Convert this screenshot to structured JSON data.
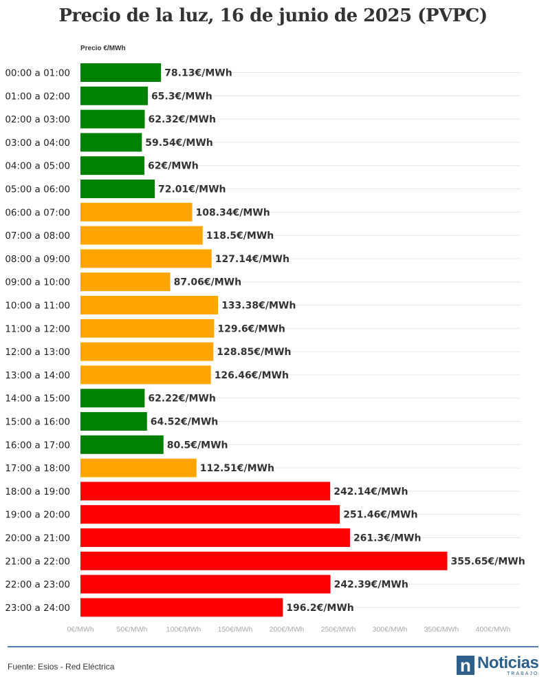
{
  "chart_data": {
    "type": "bar",
    "orientation": "horizontal",
    "title": "Precio de la luz, 16 de junio de 2025 (PVPC)",
    "value_axis_label": "Precio €/MWh",
    "value_suffix": "€/MWh",
    "xlim": [
      0,
      400
    ],
    "x_ticks": [
      "0€/MWh",
      "50€/MWh",
      "100€/MWh",
      "150€/MWh",
      "200€/MWh",
      "250€/MWh",
      "300€/MWh",
      "350€/MWh",
      "400€/MWh"
    ],
    "grid": true,
    "colors": {
      "low": "#008000",
      "mid": "#ffa500",
      "high": "#ff0000"
    },
    "categories": [
      "00:00 a 01:00",
      "01:00 a 02:00",
      "02:00 a 03:00",
      "03:00 a 04:00",
      "04:00 a 05:00",
      "05:00 a 06:00",
      "06:00 a 07:00",
      "07:00 a 08:00",
      "08:00 a 09:00",
      "09:00 a 10:00",
      "10:00 a 11:00",
      "11:00 a 12:00",
      "12:00 a 13:00",
      "13:00 a 14:00",
      "14:00 a 15:00",
      "15:00 a 16:00",
      "16:00 a 17:00",
      "17:00 a 18:00",
      "18:00 a 19:00",
      "19:00 a 20:00",
      "20:00 a 21:00",
      "21:00 a 22:00",
      "22:00 a 23:00",
      "23:00 a 24:00"
    ],
    "values": [
      78.13,
      65.3,
      62.32,
      59.54,
      62,
      72.01,
      108.34,
      118.5,
      127.14,
      87.06,
      133.38,
      129.6,
      128.85,
      126.46,
      62.22,
      64.52,
      80.5,
      112.51,
      242.14,
      251.46,
      261.3,
      355.65,
      242.39,
      196.2
    ],
    "value_labels": [
      "78.13€/MWh",
      "65.3€/MWh",
      "62.32€/MWh",
      "59.54€/MWh",
      "62€/MWh",
      "72.01€/MWh",
      "108.34€/MWh",
      "118.5€/MWh",
      "127.14€/MWh",
      "87.06€/MWh",
      "133.38€/MWh",
      "129.6€/MWh",
      "128.85€/MWh",
      "126.46€/MWh",
      "62.22€/MWh",
      "64.52€/MWh",
      "80.5€/MWh",
      "112.51€/MWh",
      "242.14€/MWh",
      "251.46€/MWh",
      "261.3€/MWh",
      "355.65€/MWh",
      "242.39€/MWh",
      "196.2€/MWh"
    ],
    "bar_colors": [
      "low",
      "low",
      "low",
      "low",
      "low",
      "low",
      "mid",
      "mid",
      "mid",
      "mid",
      "mid",
      "mid",
      "mid",
      "mid",
      "low",
      "low",
      "low",
      "mid",
      "high",
      "high",
      "high",
      "high",
      "high",
      "high"
    ]
  },
  "footer": {
    "source": "Fuente: Esios - Red Eléctrica",
    "logo_letter": "n",
    "logo_name": "Noticias",
    "logo_sub": "TRABAJO"
  },
  "theme": {
    "rule_color": "#4f7fa8",
    "brand_color": "#2d5f8b"
  }
}
